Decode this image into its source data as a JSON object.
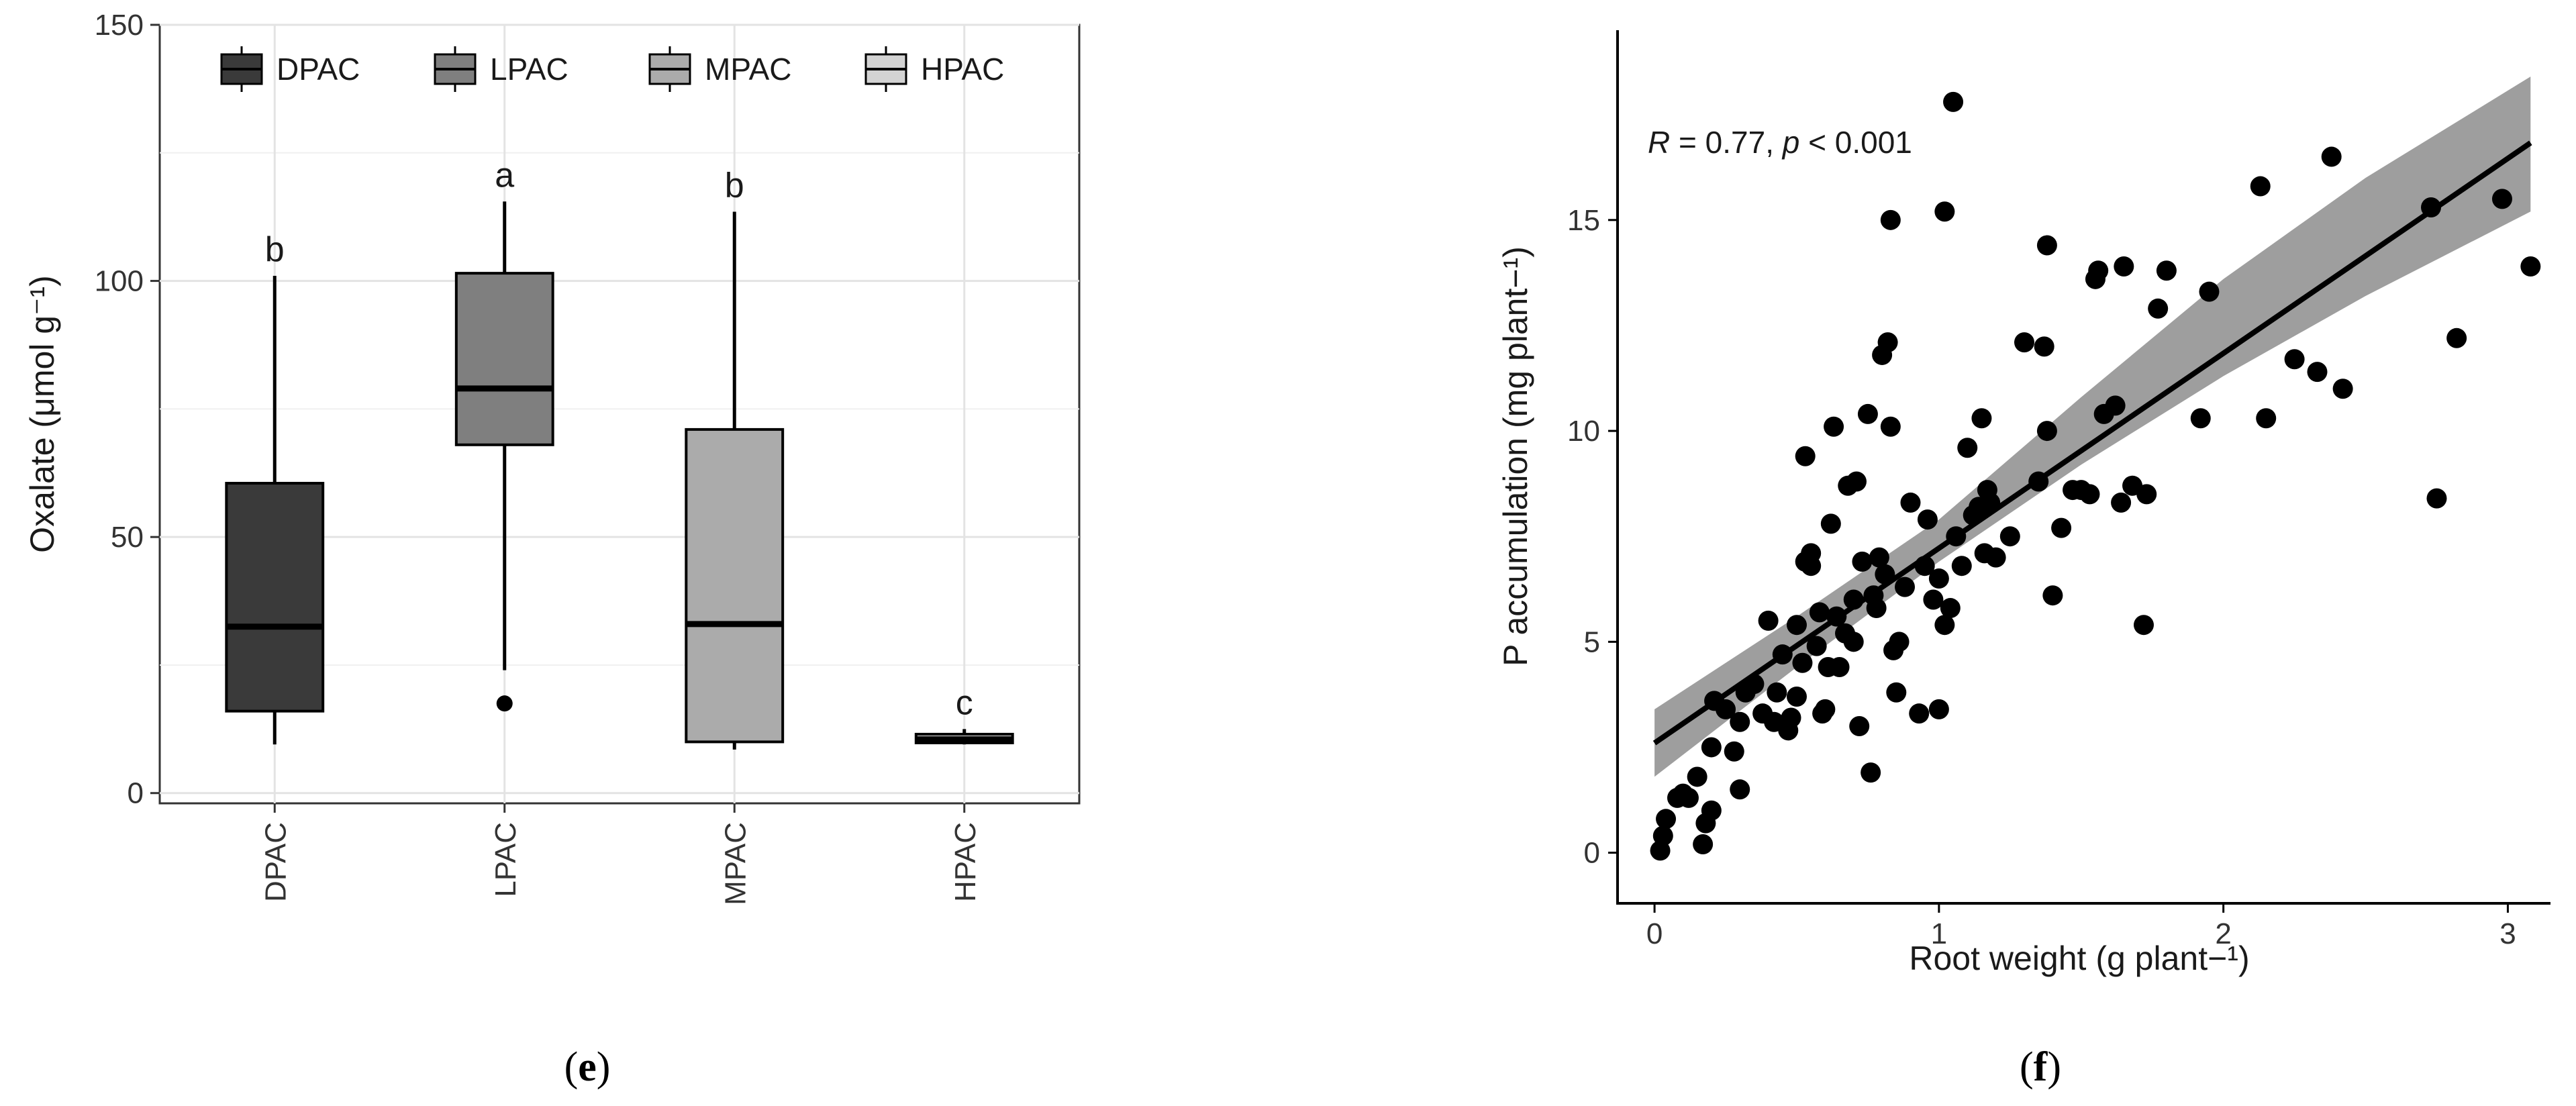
{
  "panels": {
    "e": {
      "label_open": "(",
      "label_letter": "e",
      "label_close": ")"
    },
    "f": {
      "label_open": "(",
      "label_letter": "f",
      "label_close": ")"
    }
  },
  "chart_data": [
    {
      "type": "box",
      "ylabel": "Oxalate (μmol g⁻¹)",
      "xlabel": "",
      "ylim": [
        -2,
        150
      ],
      "yticks": [
        0,
        50,
        100,
        150
      ],
      "grid": true,
      "legend_position": "top",
      "categories": [
        "DPAC",
        "LPAC",
        "MPAC",
        "HPAC"
      ],
      "legend": [
        {
          "name": "DPAC",
          "color": "#3a3a3a"
        },
        {
          "name": "LPAC",
          "color": "#7f7f7f"
        },
        {
          "name": "MPAC",
          "color": "#ababab"
        },
        {
          "name": "HPAC",
          "color": "#d3d3d3"
        }
      ],
      "boxes": [
        {
          "name": "DPAC",
          "min": 9.5,
          "q1": 16,
          "median": 32.5,
          "q3": 60.5,
          "max": 101,
          "outliers": [],
          "letter": "b"
        },
        {
          "name": "LPAC",
          "min": 24,
          "q1": 68,
          "median": 79,
          "q3": 101.5,
          "max": 115.5,
          "outliers": [
            17.5
          ],
          "letter": "a"
        },
        {
          "name": "MPAC",
          "min": 8.5,
          "q1": 10,
          "median": 33,
          "q3": 71,
          "max": 113.5,
          "outliers": [],
          "letter": "b"
        },
        {
          "name": "HPAC",
          "min": 9.5,
          "q1": 9.8,
          "median": 10.5,
          "q3": 11.5,
          "max": 12.5,
          "outliers": [],
          "letter": "c"
        }
      ]
    },
    {
      "type": "scatter",
      "xlabel": "Root weight (g plant−¹)",
      "ylabel": "P accumulation (mg plant−¹)",
      "xlim": [
        -0.13,
        3.15
      ],
      "ylim": [
        -1.2,
        19.5
      ],
      "xticks": [
        0,
        1,
        2,
        3
      ],
      "yticks": [
        0,
        5,
        10,
        15
      ],
      "grid": false,
      "annotation": {
        "r_label": "R",
        "r_text": " = 0.77, ",
        "p_label": "p",
        "p_text": " < 0.001"
      },
      "fit": {
        "intercept": 2.6,
        "slope": 4.62,
        "x_range": [
          0,
          3.08
        ]
      },
      "band": {
        "x": [
          0,
          0.5,
          1.0,
          1.5,
          2.0,
          2.5,
          3.08
        ],
        "lower": [
          1.8,
          4.4,
          6.9,
          9.2,
          11.3,
          13.2,
          15.2
        ],
        "upper": [
          3.4,
          5.6,
          7.9,
          10.8,
          13.6,
          16.0,
          18.4
        ]
      },
      "points": [
        [
          0.02,
          0.05
        ],
        [
          0.03,
          0.4
        ],
        [
          0.04,
          0.8
        ],
        [
          0.08,
          1.3
        ],
        [
          0.1,
          1.4
        ],
        [
          0.12,
          1.3
        ],
        [
          0.15,
          1.8
        ],
        [
          0.17,
          0.2
        ],
        [
          0.18,
          0.7
        ],
        [
          0.2,
          1.0
        ],
        [
          0.2,
          2.5
        ],
        [
          0.21,
          3.6
        ],
        [
          0.25,
          3.4
        ],
        [
          0.28,
          2.4
        ],
        [
          0.3,
          1.5
        ],
        [
          0.3,
          3.1
        ],
        [
          0.32,
          3.8
        ],
        [
          0.35,
          4.0
        ],
        [
          0.38,
          3.3
        ],
        [
          0.4,
          5.5
        ],
        [
          0.42,
          3.1
        ],
        [
          0.43,
          3.8
        ],
        [
          0.45,
          4.7
        ],
        [
          0.47,
          2.9
        ],
        [
          0.48,
          3.2
        ],
        [
          0.5,
          5.4
        ],
        [
          0.5,
          3.7
        ],
        [
          0.52,
          4.5
        ],
        [
          0.53,
          6.9
        ],
        [
          0.53,
          9.4
        ],
        [
          0.55,
          7.1
        ],
        [
          0.55,
          6.8
        ],
        [
          0.57,
          4.9
        ],
        [
          0.58,
          5.7
        ],
        [
          0.59,
          3.3
        ],
        [
          0.6,
          3.4
        ],
        [
          0.61,
          4.4
        ],
        [
          0.62,
          7.8
        ],
        [
          0.63,
          10.1
        ],
        [
          0.64,
          5.6
        ],
        [
          0.65,
          4.4
        ],
        [
          0.67,
          5.2
        ],
        [
          0.68,
          8.7
        ],
        [
          0.7,
          6.0
        ],
        [
          0.7,
          5.0
        ],
        [
          0.71,
          8.8
        ],
        [
          0.72,
          3.0
        ],
        [
          0.73,
          6.9
        ],
        [
          0.75,
          10.4
        ],
        [
          0.76,
          1.9
        ],
        [
          0.77,
          6.1
        ],
        [
          0.78,
          5.8
        ],
        [
          0.79,
          7.0
        ],
        [
          0.8,
          11.8
        ],
        [
          0.81,
          6.6
        ],
        [
          0.82,
          12.1
        ],
        [
          0.83,
          15.0
        ],
        [
          0.83,
          10.1
        ],
        [
          0.84,
          4.8
        ],
        [
          0.85,
          3.8
        ],
        [
          0.86,
          5.0
        ],
        [
          0.88,
          6.3
        ],
        [
          0.9,
          8.3
        ],
        [
          0.93,
          3.3
        ],
        [
          0.95,
          6.8
        ],
        [
          0.96,
          7.9
        ],
        [
          0.98,
          6.0
        ],
        [
          1.0,
          3.4
        ],
        [
          1.0,
          6.5
        ],
        [
          1.02,
          15.2
        ],
        [
          1.02,
          5.4
        ],
        [
          1.04,
          5.8
        ],
        [
          1.05,
          17.8
        ],
        [
          1.06,
          7.5
        ],
        [
          1.08,
          6.8
        ],
        [
          1.1,
          9.6
        ],
        [
          1.12,
          8.0
        ],
        [
          1.14,
          8.2
        ],
        [
          1.15,
          10.3
        ],
        [
          1.16,
          7.1
        ],
        [
          1.17,
          8.6
        ],
        [
          1.18,
          8.3
        ],
        [
          1.2,
          7.0
        ],
        [
          1.25,
          7.5
        ],
        [
          1.3,
          12.1
        ],
        [
          1.35,
          8.8
        ],
        [
          1.37,
          12.0
        ],
        [
          1.38,
          14.4
        ],
        [
          1.38,
          10.0
        ],
        [
          1.4,
          6.1
        ],
        [
          1.43,
          7.7
        ],
        [
          1.47,
          8.6
        ],
        [
          1.5,
          8.6
        ],
        [
          1.53,
          8.5
        ],
        [
          1.55,
          13.6
        ],
        [
          1.56,
          13.8
        ],
        [
          1.58,
          10.4
        ],
        [
          1.62,
          10.6
        ],
        [
          1.64,
          8.3
        ],
        [
          1.65,
          13.9
        ],
        [
          1.68,
          8.7
        ],
        [
          1.72,
          5.4
        ],
        [
          1.73,
          8.5
        ],
        [
          1.77,
          12.9
        ],
        [
          1.8,
          13.8
        ],
        [
          1.92,
          10.3
        ],
        [
          1.95,
          13.3
        ],
        [
          2.13,
          15.8
        ],
        [
          2.15,
          10.3
        ],
        [
          2.25,
          11.7
        ],
        [
          2.33,
          11.4
        ],
        [
          2.38,
          16.5
        ],
        [
          2.42,
          11.0
        ],
        [
          2.73,
          15.3
        ],
        [
          2.75,
          8.4
        ],
        [
          2.82,
          12.2
        ],
        [
          2.98,
          15.5
        ],
        [
          3.08,
          13.9
        ]
      ]
    }
  ]
}
